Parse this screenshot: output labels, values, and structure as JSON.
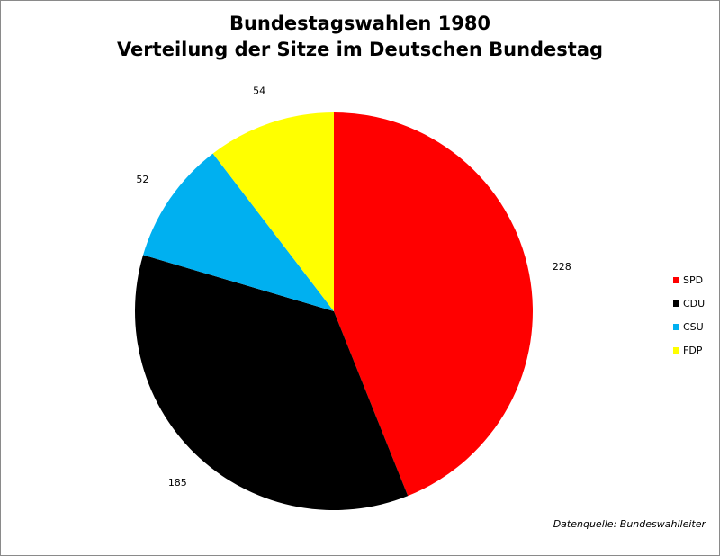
{
  "chart_data": {
    "type": "pie",
    "title": [
      "Bundestagswahlen 1980",
      "Verteilung der Sitze im Deutschen Bundestag"
    ],
    "categories": [
      "SPD",
      "CDU",
      "CSU",
      "FDP"
    ],
    "values": [
      228,
      185,
      52,
      54
    ],
    "data_labels": [
      "228",
      "185",
      "52",
      "54"
    ],
    "colors": [
      "#ff0000",
      "#000000",
      "#00b0f0",
      "#ffff00"
    ],
    "legend": {
      "placement": "right",
      "entries": [
        "SPD",
        "CDU",
        "CSU",
        "FDP"
      ]
    },
    "source_note": "Datenquelle: Bundeswahlleiter",
    "start_angle": "12 o'clock",
    "direction": "clockwise"
  }
}
